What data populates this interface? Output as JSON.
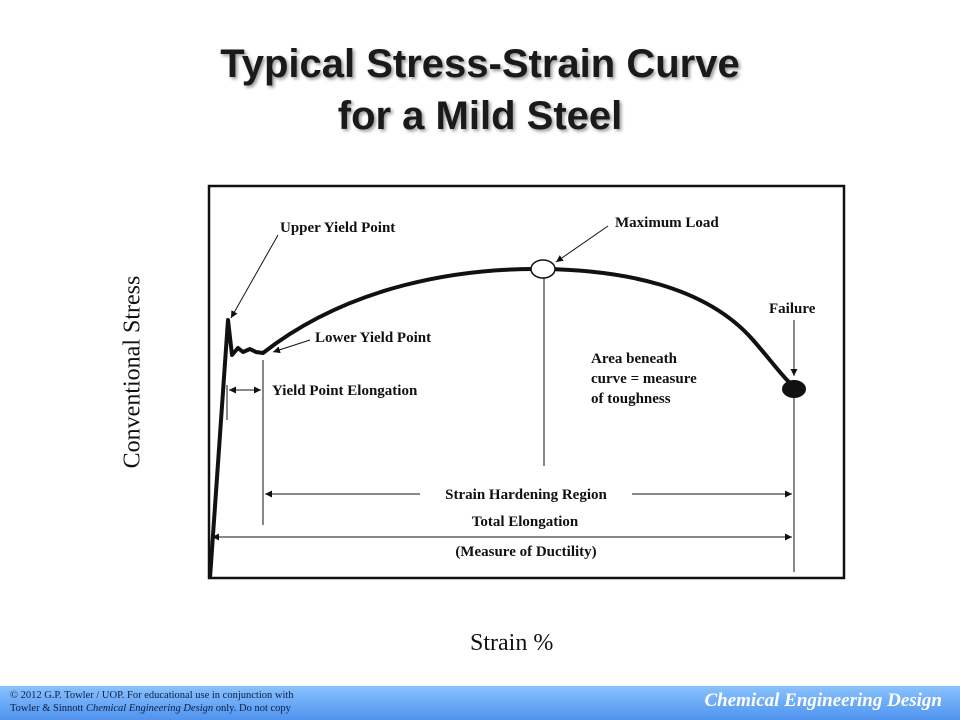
{
  "title": {
    "line1": "Typical Stress-Strain Curve",
    "line2": "for a Mild Steel"
  },
  "axes": {
    "ylabel": "Conventional Stress",
    "xlabel": "Strain %"
  },
  "annotations": {
    "upper_yield_point": "Upper Yield Point",
    "lower_yield_point": "Lower Yield Point",
    "yield_point_elongation": "Yield Point Elongation",
    "maximum_load": "Maximum Load",
    "failure": "Failure",
    "area_line1": "Area beneath",
    "area_line2": "curve = measure",
    "area_line3": "of toughness",
    "strain_hardening_region": "Strain Hardening Region",
    "total_elongation": "Total Elongation",
    "measure_of_ductility": "(Measure of Ductility)"
  },
  "footer": {
    "copyright_line1": "© 2012 G.P. Towler / UOP. For educational use in conjunction with",
    "copyright_line2_pre": "Towler & Sinnott ",
    "copyright_line2_italic": "Chemical Engineering Design",
    "copyright_line2_post": " only. Do not copy",
    "brand": "Chemical Engineering Design"
  },
  "colors": {
    "footer_top": "#8ac2ff",
    "footer_bottom": "#4f93ee",
    "brand_text": "#ffffff",
    "title_shadow": "#9a9a9a"
  }
}
